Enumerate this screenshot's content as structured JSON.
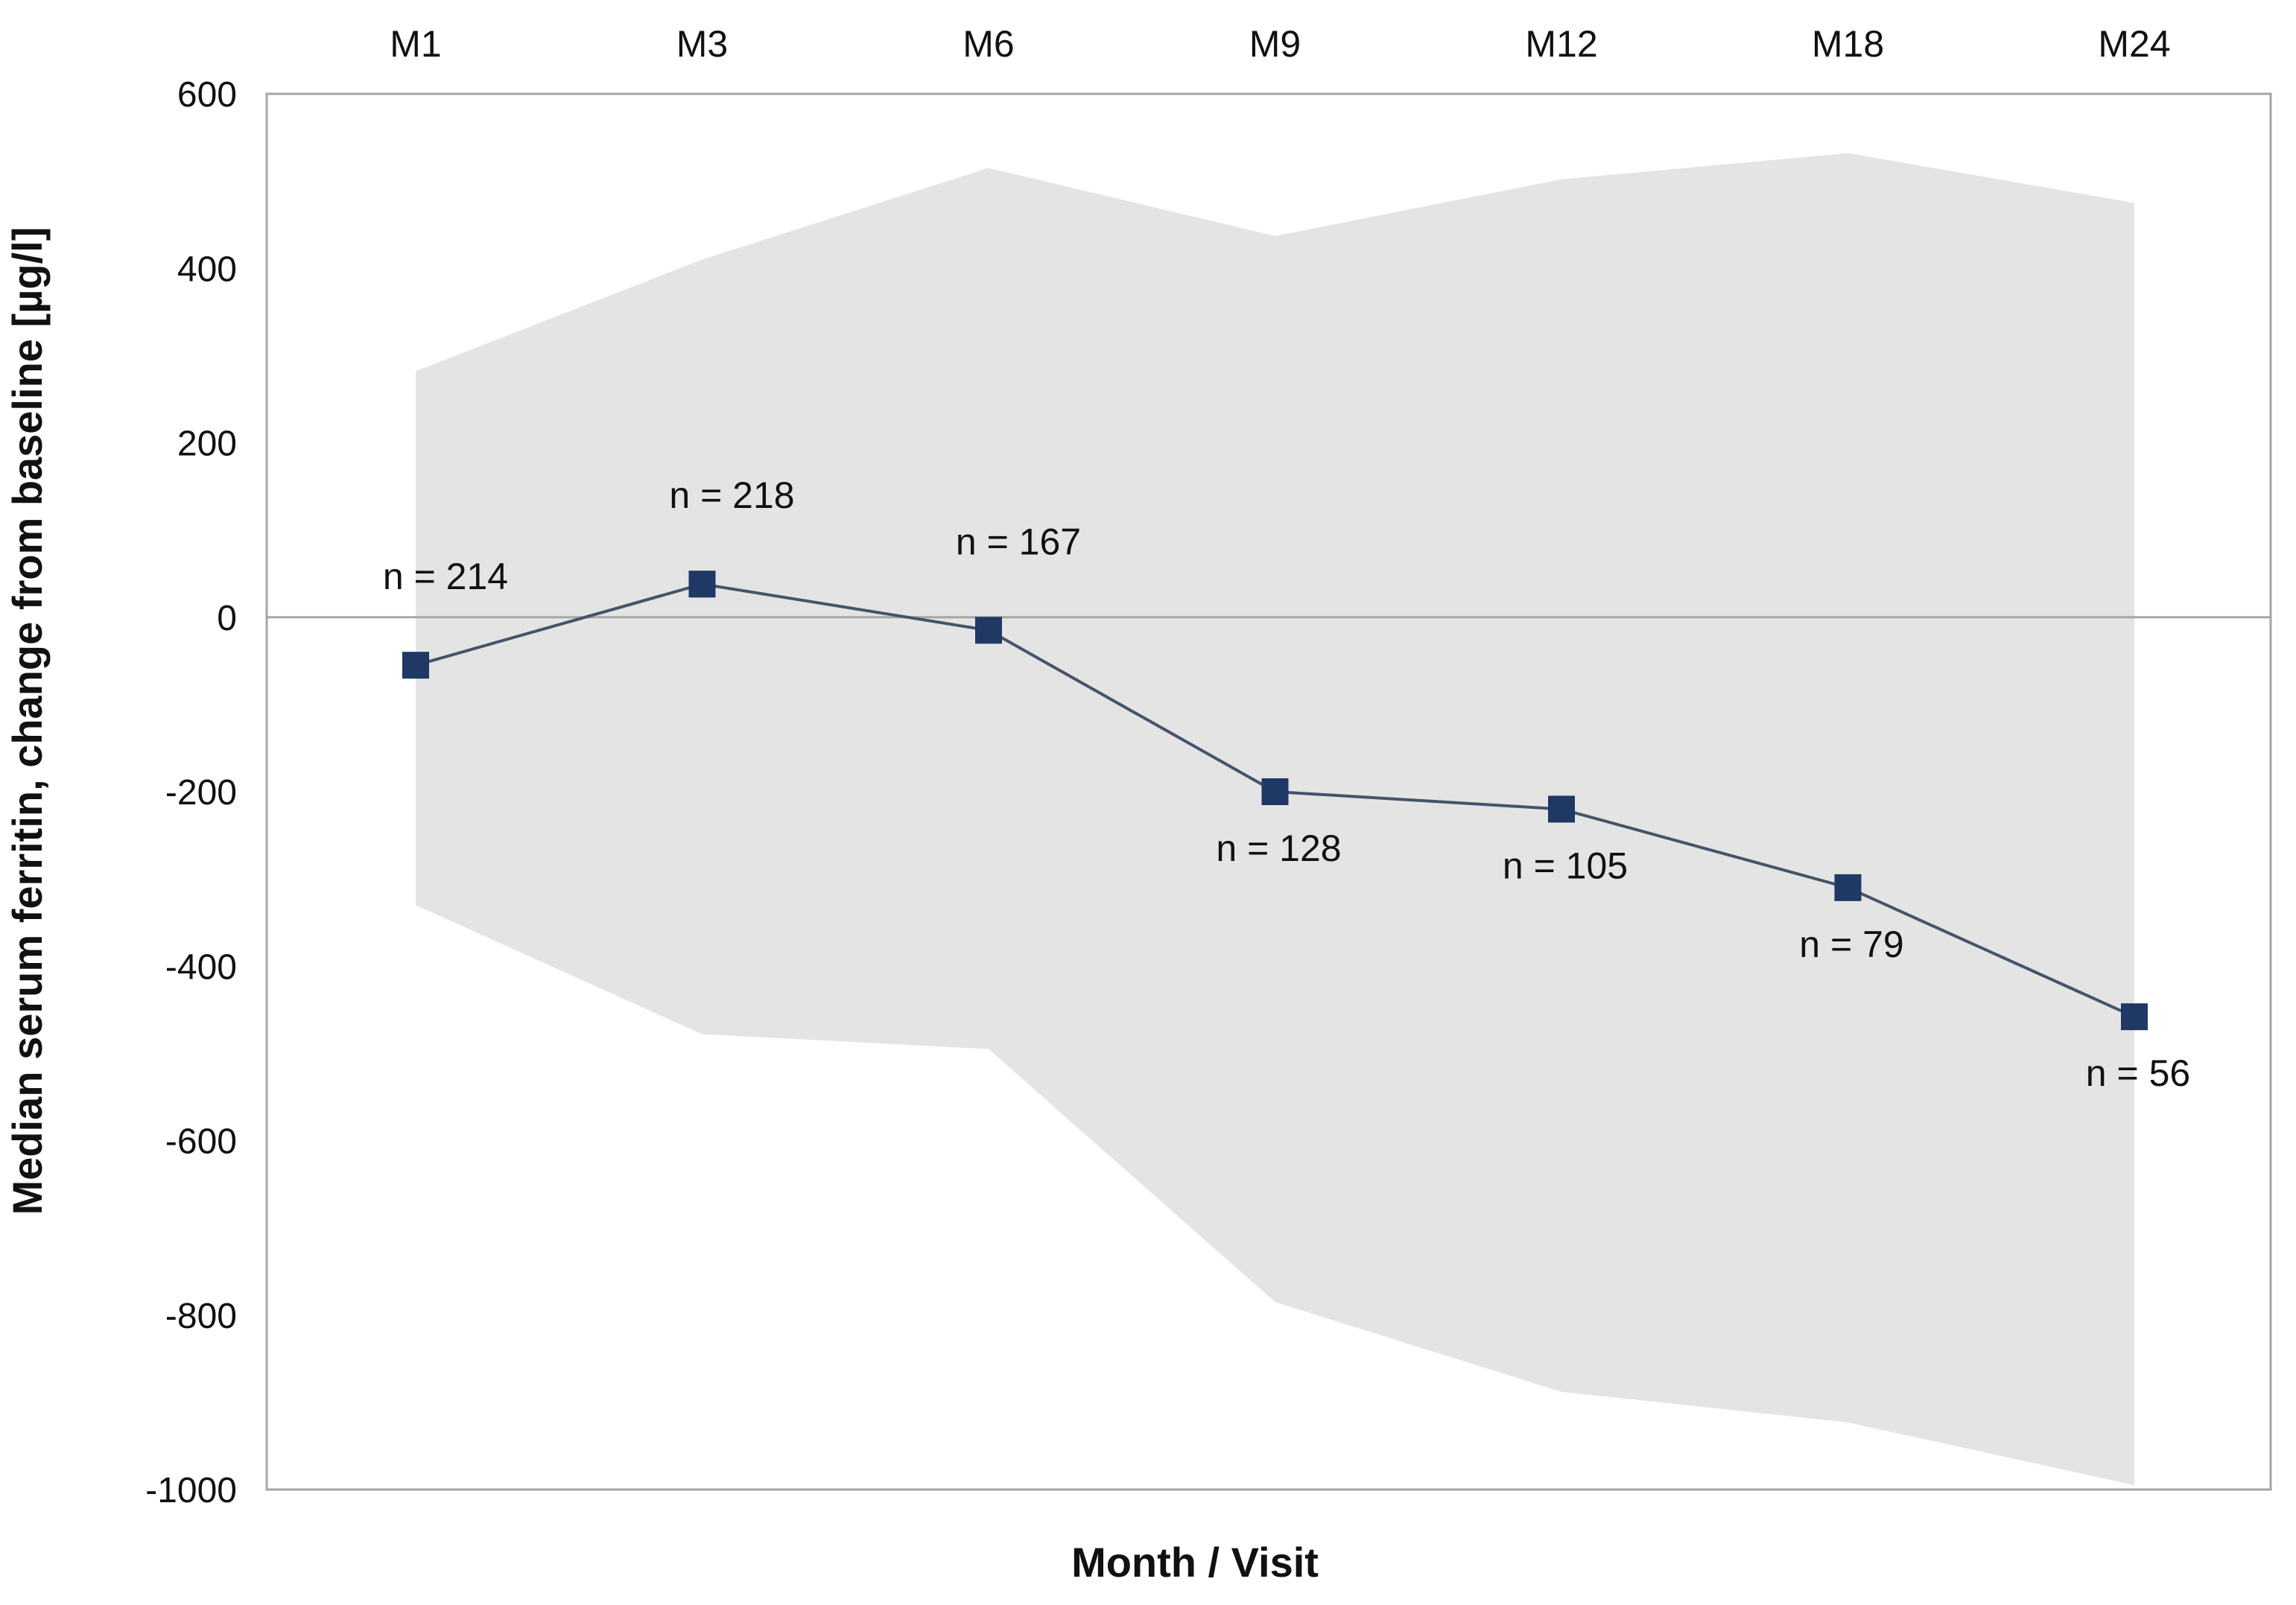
{
  "chart_data": {
    "type": "line",
    "categories": [
      "M1",
      "M3",
      "M6",
      "M9",
      "M12",
      "M18",
      "M24"
    ],
    "series": [
      {
        "values": [
          -55,
          38,
          -15,
          -200,
          -220,
          -310,
          -458
        ],
        "n_labels": [
          "n = 214",
          "n = 218",
          "n = 167",
          "n = 128",
          "n = 105",
          "n = 79",
          "n = 56"
        ],
        "color": "#1f3864"
      }
    ],
    "range_band": {
      "upper": [
        282,
        410,
        515,
        437,
        502,
        532,
        475
      ],
      "lower": [
        -330,
        -478,
        -495,
        -785,
        -888,
        -923,
        -995
      ],
      "color": "#e4e4e4"
    },
    "xlabel": "Month / Visit",
    "ylabel": "Median serum ferritin, change from baseline [µg/l]",
    "ylim": [
      -1000,
      600
    ],
    "yticks": [
      600,
      400,
      200,
      0,
      -200,
      -400,
      -600,
      -800,
      -1000
    ],
    "ytick_labels": [
      "600",
      "400",
      "200",
      "0",
      "-200",
      "-400",
      "-600",
      "-800",
      "-1000"
    ],
    "x_axis_position": "top",
    "grid": false,
    "zero_line": true,
    "colors": {
      "line": "#44546a",
      "marker": "#1f3864",
      "band": "#e4e4e4",
      "frame": "#a6a6a6"
    }
  }
}
